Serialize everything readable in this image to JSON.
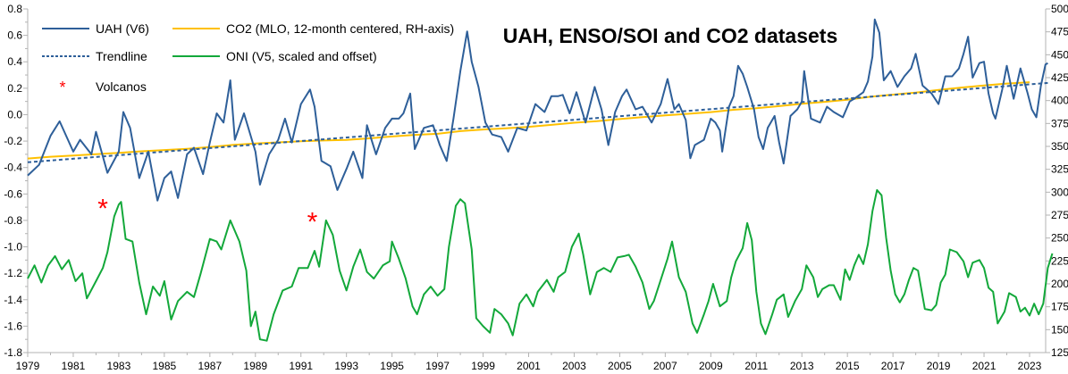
{
  "chart_data": {
    "type": "line",
    "title": "UAH, ENSO/SOI and CO2 datasets",
    "xlabel": "",
    "ylabel": "",
    "xlim": [
      1979,
      2023.7
    ],
    "ylim": [
      -1.8,
      0.8
    ],
    "y2lim": [
      125,
      500
    ],
    "x_ticks": [
      "1979",
      "1981",
      "1983",
      "1985",
      "1987",
      "1989",
      "1991",
      "1993",
      "1995",
      "1997",
      "1999",
      "2001",
      "2003",
      "2005",
      "2007",
      "2009",
      "2011",
      "2013",
      "2015",
      "2017",
      "2019",
      "2021",
      "2023"
    ],
    "y_ticks": [
      "0.8",
      "0.6",
      "0.4",
      "0.2",
      "0.0",
      "-0.2",
      "-0.4",
      "-0.6",
      "-0.8",
      "-1.0",
      "-1.2",
      "-1.4",
      "-1.6",
      "-1.8"
    ],
    "y2_ticks": [
      "500",
      "475",
      "450",
      "425",
      "400",
      "375",
      "350",
      "325",
      "300",
      "275",
      "250",
      "225",
      "200",
      "175",
      "150",
      "125"
    ],
    "grid": false,
    "legend_placement": "top-left",
    "legend": {
      "uah": "UAH (V6)",
      "co2": "CO2 (MLO, 12-month centered, RH-axis)",
      "trend": "Trendline",
      "oni": "ONI (V5, scaled and offset)",
      "volcanos": "Volcanos"
    },
    "colors": {
      "uah": "#2e5f99",
      "co2": "#ffc000",
      "trend": "#2e5f99",
      "oni": "#13a83a",
      "volcanos": "#ff0000",
      "axis": "#b3b3b3"
    },
    "series": [
      {
        "name": "UAH (V6)",
        "axis": "left",
        "style": "solid",
        "x": [
          1979.0,
          1979.5,
          1980.0,
          1980.4,
          1981.0,
          1981.3,
          1981.8,
          1982.0,
          1982.5,
          1983.0,
          1983.2,
          1983.5,
          1983.9,
          1984.3,
          1984.7,
          1985.0,
          1985.3,
          1985.6,
          1986.0,
          1986.3,
          1986.7,
          1987.0,
          1987.3,
          1987.6,
          1987.9,
          1988.1,
          1988.5,
          1989.0,
          1989.2,
          1989.6,
          1990.0,
          1990.3,
          1990.6,
          1991.0,
          1991.4,
          1991.6,
          1991.9,
          1992.3,
          1992.6,
          1993.0,
          1993.3,
          1993.7,
          1993.9,
          1994.3,
          1994.7,
          1995.0,
          1995.3,
          1995.5,
          1995.8,
          1996.0,
          1996.4,
          1996.8,
          1997.1,
          1997.4,
          1997.7,
          1998.0,
          1998.3,
          1998.5,
          1998.8,
          1999.1,
          1999.4,
          1999.8,
          2000.1,
          2000.5,
          2000.9,
          2001.3,
          2001.7,
          2002.0,
          2002.3,
          2002.5,
          2002.8,
          2003.1,
          2003.5,
          2003.9,
          2004.2,
          2004.5,
          2004.8,
          2005.1,
          2005.3,
          2005.7,
          2006.0,
          2006.4,
          2006.8,
          2007.1,
          2007.4,
          2007.6,
          2007.9,
          2008.1,
          2008.3,
          2008.7,
          2009.0,
          2009.2,
          2009.4,
          2009.5,
          2009.8,
          2010.0,
          2010.2,
          2010.4,
          2010.6,
          2010.9,
          2011.1,
          2011.3,
          2011.5,
          2011.8,
          2012.0,
          2012.2,
          2012.5,
          2012.8,
          2013.0,
          2013.1,
          2013.4,
          2013.8,
          2014.1,
          2014.4,
          2014.8,
          2015.1,
          2015.3,
          2015.7,
          2015.9,
          2016.1,
          2016.2,
          2016.4,
          2016.6,
          2016.9,
          2017.2,
          2017.5,
          2017.8,
          2018.0,
          2018.3,
          2018.7,
          2019.0,
          2019.3,
          2019.6,
          2019.9,
          2020.1,
          2020.3,
          2020.5,
          2020.8,
          2021.0,
          2021.2,
          2021.4,
          2021.5,
          2021.8,
          2022.0,
          2022.3,
          2022.6,
          2022.9,
          2023.1,
          2023.3,
          2023.5,
          2023.7,
          2023.8
        ],
        "values": [
          -0.46,
          -0.38,
          -0.16,
          -0.05,
          -0.28,
          -0.19,
          -0.3,
          -0.13,
          -0.44,
          -0.28,
          0.02,
          -0.1,
          -0.48,
          -0.28,
          -0.65,
          -0.48,
          -0.43,
          -0.63,
          -0.3,
          -0.25,
          -0.45,
          -0.21,
          0.01,
          -0.06,
          0.26,
          -0.19,
          0.01,
          -0.28,
          -0.53,
          -0.3,
          -0.19,
          -0.03,
          -0.21,
          0.08,
          0.19,
          0.06,
          -0.35,
          -0.39,
          -0.57,
          -0.41,
          -0.28,
          -0.48,
          -0.08,
          -0.3,
          -0.1,
          -0.03,
          -0.03,
          0.01,
          0.16,
          -0.26,
          -0.1,
          -0.08,
          -0.23,
          -0.35,
          -0.03,
          0.33,
          0.63,
          0.4,
          0.21,
          -0.06,
          -0.15,
          -0.17,
          -0.28,
          -0.1,
          -0.12,
          0.08,
          0.02,
          0.14,
          0.14,
          0.15,
          0.01,
          0.17,
          -0.06,
          0.21,
          0.04,
          -0.23,
          0.02,
          0.14,
          0.19,
          0.04,
          0.06,
          -0.06,
          0.08,
          0.27,
          0.04,
          0.08,
          -0.04,
          -0.33,
          -0.23,
          -0.19,
          -0.03,
          -0.06,
          -0.12,
          -0.28,
          0.06,
          0.14,
          0.37,
          0.31,
          0.21,
          0.04,
          -0.17,
          -0.26,
          -0.1,
          -0.01,
          -0.21,
          -0.37,
          -0.01,
          0.04,
          0.1,
          0.33,
          -0.03,
          -0.06,
          0.06,
          0.02,
          -0.02,
          0.1,
          0.12,
          0.17,
          0.25,
          0.44,
          0.72,
          0.62,
          0.26,
          0.33,
          0.21,
          0.29,
          0.35,
          0.46,
          0.22,
          0.16,
          0.08,
          0.29,
          0.29,
          0.35,
          0.46,
          0.59,
          0.28,
          0.39,
          0.4,
          0.16,
          0.01,
          -0.03,
          0.19,
          0.37,
          0.12,
          0.35,
          0.17,
          0.04,
          -0.02,
          0.22,
          0.38,
          0.39
        ]
      },
      {
        "name": "CO2 (MLO, 12-month centered, RH-axis)",
        "axis": "right",
        "style": "solid",
        "x": [
          1979,
          1980,
          1981,
          1982,
          1983,
          1984,
          1985,
          1986,
          1987,
          1988,
          1989,
          1990,
          1991,
          1992,
          1993,
          1994,
          1995,
          1996,
          1997,
          1998,
          1999,
          2000,
          2001,
          2002,
          2003,
          2004,
          2005,
          2006,
          2007,
          2008,
          2009,
          2010,
          2011,
          2012,
          2013,
          2014,
          2015,
          2016,
          2017,
          2018,
          2019,
          2020,
          2021,
          2022,
          2023
        ],
        "values": [
          336.8,
          338.7,
          340.1,
          341.4,
          343.0,
          344.6,
          346.0,
          347.4,
          349.2,
          351.6,
          353.1,
          354.4,
          355.6,
          356.4,
          357.1,
          358.8,
          360.8,
          362.6,
          363.7,
          366.7,
          368.4,
          369.7,
          371.3,
          373.5,
          375.8,
          377.5,
          379.8,
          381.9,
          383.8,
          385.6,
          387.4,
          389.9,
          391.7,
          393.9,
          396.5,
          398.6,
          400.8,
          404.2,
          406.5,
          408.7,
          411.7,
          414.2,
          416.4,
          418.6,
          420.0
        ]
      },
      {
        "name": "Trendline",
        "axis": "left",
        "style": "dashed",
        "x": [
          1979.0,
          2023.8
        ],
        "values": [
          -0.36,
          0.24
        ]
      },
      {
        "name": "ONI (V5, scaled and offset)",
        "axis": "left",
        "style": "solid",
        "x": [
          1979.0,
          1979.3,
          1979.6,
          1979.9,
          1980.2,
          1980.5,
          1980.8,
          1981.1,
          1981.4,
          1981.6,
          1982.0,
          1982.3,
          1982.5,
          1982.8,
          1983.0,
          1983.1,
          1983.3,
          1983.6,
          1983.9,
          1984.2,
          1984.5,
          1984.8,
          1985.0,
          1985.3,
          1985.6,
          1986.0,
          1986.3,
          1986.6,
          1987.0,
          1987.3,
          1987.5,
          1987.9,
          1988.3,
          1988.6,
          1988.8,
          1989.0,
          1989.2,
          1989.5,
          1989.8,
          1990.2,
          1990.6,
          1990.9,
          1991.3,
          1991.6,
          1991.8,
          1992.1,
          1992.4,
          1992.7,
          1993.0,
          1993.3,
          1993.6,
          1993.9,
          1994.2,
          1994.6,
          1994.9,
          1995.0,
          1995.3,
          1995.6,
          1995.9,
          1996.1,
          1996.4,
          1996.7,
          1997.0,
          1997.3,
          1997.5,
          1997.8,
          1998.0,
          1998.2,
          1998.5,
          1998.7,
          1999.0,
          1999.3,
          1999.5,
          1999.8,
          2000.1,
          2000.3,
          2000.6,
          2000.9,
          2001.2,
          2001.4,
          2001.8,
          2002.1,
          2002.3,
          2002.6,
          2002.9,
          2003.2,
          2003.4,
          2003.7,
          2004.0,
          2004.3,
          2004.6,
          2004.9,
          2005.2,
          2005.4,
          2005.7,
          2006.0,
          2006.3,
          2006.5,
          2006.8,
          2007.1,
          2007.3,
          2007.6,
          2007.9,
          2008.2,
          2008.4,
          2008.7,
          2008.9,
          2009.1,
          2009.4,
          2009.7,
          2009.9,
          2010.1,
          2010.4,
          2010.6,
          2010.8,
          2011.0,
          2011.2,
          2011.4,
          2011.7,
          2011.9,
          2012.2,
          2012.4,
          2012.7,
          2013.0,
          2013.2,
          2013.5,
          2013.7,
          2013.9,
          2014.2,
          2014.4,
          2014.7,
          2014.9,
          2015.1,
          2015.3,
          2015.5,
          2015.7,
          2015.9,
          2016.1,
          2016.3,
          2016.5,
          2016.7,
          2016.9,
          2017.1,
          2017.3,
          2017.5,
          2017.7,
          2017.9,
          2018.1,
          2018.4,
          2018.7,
          2018.9,
          2019.1,
          2019.3,
          2019.5,
          2019.8,
          2020.1,
          2020.3,
          2020.5,
          2020.8,
          2021.0,
          2021.2,
          2021.4,
          2021.6,
          2021.9,
          2022.1,
          2022.4,
          2022.6,
          2022.8,
          2023.0,
          2023.2,
          2023.4,
          2023.6,
          2023.8,
          2024.0
        ],
        "values": [
          -1.24,
          -1.14,
          -1.27,
          -1.14,
          -1.07,
          -1.17,
          -1.1,
          -1.26,
          -1.2,
          -1.39,
          -1.26,
          -1.16,
          -1.04,
          -0.77,
          -0.68,
          -0.66,
          -0.94,
          -0.96,
          -1.27,
          -1.51,
          -1.3,
          -1.37,
          -1.26,
          -1.55,
          -1.41,
          -1.34,
          -1.38,
          -1.2,
          -0.94,
          -0.96,
          -1.02,
          -0.8,
          -0.96,
          -1.18,
          -1.6,
          -1.49,
          -1.7,
          -1.71,
          -1.51,
          -1.33,
          -1.3,
          -1.16,
          -1.16,
          -1.03,
          -1.15,
          -0.8,
          -0.91,
          -1.18,
          -1.33,
          -1.15,
          -1.02,
          -1.19,
          -1.24,
          -1.14,
          -1.11,
          -0.96,
          -1.09,
          -1.24,
          -1.45,
          -1.51,
          -1.36,
          -1.3,
          -1.37,
          -1.32,
          -1.0,
          -0.69,
          -0.64,
          -0.67,
          -1.02,
          -1.54,
          -1.6,
          -1.65,
          -1.47,
          -1.51,
          -1.58,
          -1.67,
          -1.43,
          -1.36,
          -1.45,
          -1.34,
          -1.25,
          -1.34,
          -1.23,
          -1.19,
          -1.0,
          -0.9,
          -1.06,
          -1.36,
          -1.19,
          -1.16,
          -1.19,
          -1.08,
          -1.07,
          -1.06,
          -1.15,
          -1.27,
          -1.47,
          -1.41,
          -1.25,
          -1.09,
          -0.96,
          -1.23,
          -1.34,
          -1.58,
          -1.65,
          -1.51,
          -1.41,
          -1.28,
          -1.45,
          -1.41,
          -1.23,
          -1.11,
          -1.01,
          -0.82,
          -0.95,
          -1.34,
          -1.58,
          -1.66,
          -1.51,
          -1.4,
          -1.36,
          -1.53,
          -1.41,
          -1.32,
          -1.14,
          -1.23,
          -1.38,
          -1.32,
          -1.29,
          -1.29,
          -1.4,
          -1.17,
          -1.25,
          -1.14,
          -1.06,
          -1.13,
          -0.98,
          -0.73,
          -0.57,
          -0.61,
          -0.93,
          -1.18,
          -1.36,
          -1.42,
          -1.36,
          -1.25,
          -1.16,
          -1.18,
          -1.47,
          -1.48,
          -1.44,
          -1.27,
          -1.21,
          -1.02,
          -1.04,
          -1.11,
          -1.23,
          -1.12,
          -1.1,
          -1.16,
          -1.31,
          -1.34,
          -1.58,
          -1.49,
          -1.35,
          -1.38,
          -1.49,
          -1.46,
          -1.52,
          -1.43,
          -1.51,
          -1.43,
          -1.16,
          -1.05
        ]
      }
    ],
    "volcanos": {
      "x": [
        1982.3,
        1991.5
      ],
      "values": [
        -0.69,
        -0.79
      ]
    }
  }
}
